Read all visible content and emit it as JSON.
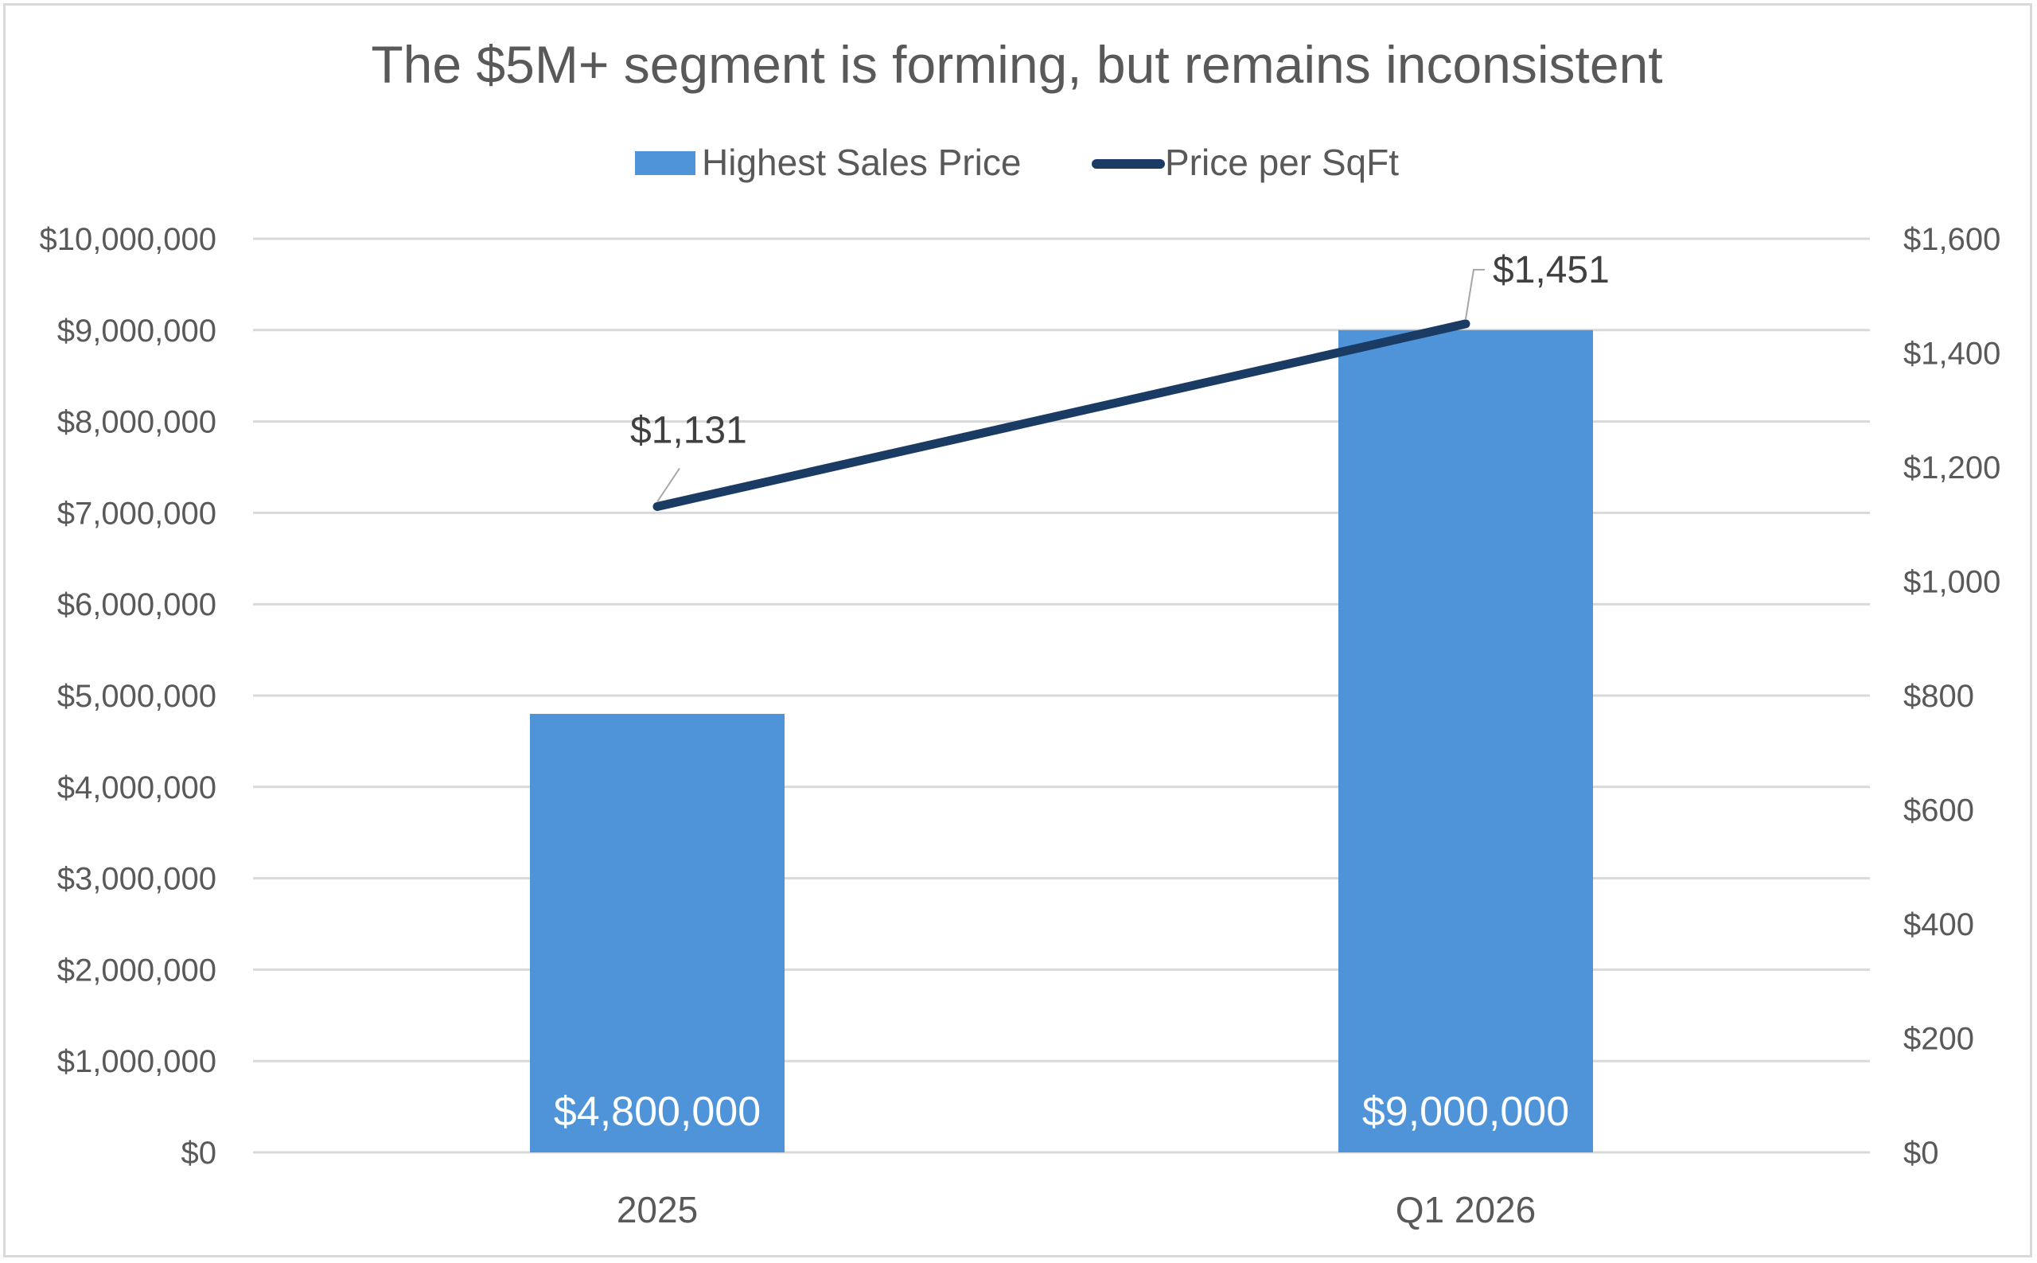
{
  "chart_data": {
    "type": "bar",
    "title": "The $5M+ segment is forming, but remains inconsistent",
    "categories": [
      "2025",
      "Q1 2026"
    ],
    "series": [
      {
        "name": "Highest Sales Price",
        "type": "bar",
        "axis": "left",
        "color": "#4f94d9",
        "values": [
          4800000,
          9000000
        ],
        "labels": [
          "$4,800,000",
          "$9,000,000"
        ]
      },
      {
        "name": "Price per SqFt",
        "type": "line",
        "axis": "right",
        "color": "#1a3b63",
        "values": [
          1131,
          1451
        ],
        "labels": [
          "$1,131",
          "$1,451"
        ]
      }
    ],
    "y_left": {
      "ylim": [
        0,
        10000000
      ],
      "ticks": [
        0,
        1000000,
        2000000,
        3000000,
        4000000,
        5000000,
        6000000,
        7000000,
        8000000,
        9000000,
        10000000
      ],
      "tick_labels": [
        "$0",
        "$1,000,000",
        "$2,000,000",
        "$3,000,000",
        "$4,000,000",
        "$5,000,000",
        "$6,000,000",
        "$7,000,000",
        "$8,000,000",
        "$9,000,000",
        "$10,000,000"
      ]
    },
    "y_right": {
      "ylim": [
        0,
        1600
      ],
      "ticks": [
        0,
        200,
        400,
        600,
        800,
        1000,
        1200,
        1400,
        1600
      ],
      "tick_labels": [
        "$0",
        "$200",
        "$400",
        "$600",
        "$800",
        "$1,000",
        "$1,200",
        "$1,400",
        "$1,600"
      ]
    },
    "xlabel": "",
    "ylabel": "",
    "grid": true,
    "legend": "top"
  }
}
